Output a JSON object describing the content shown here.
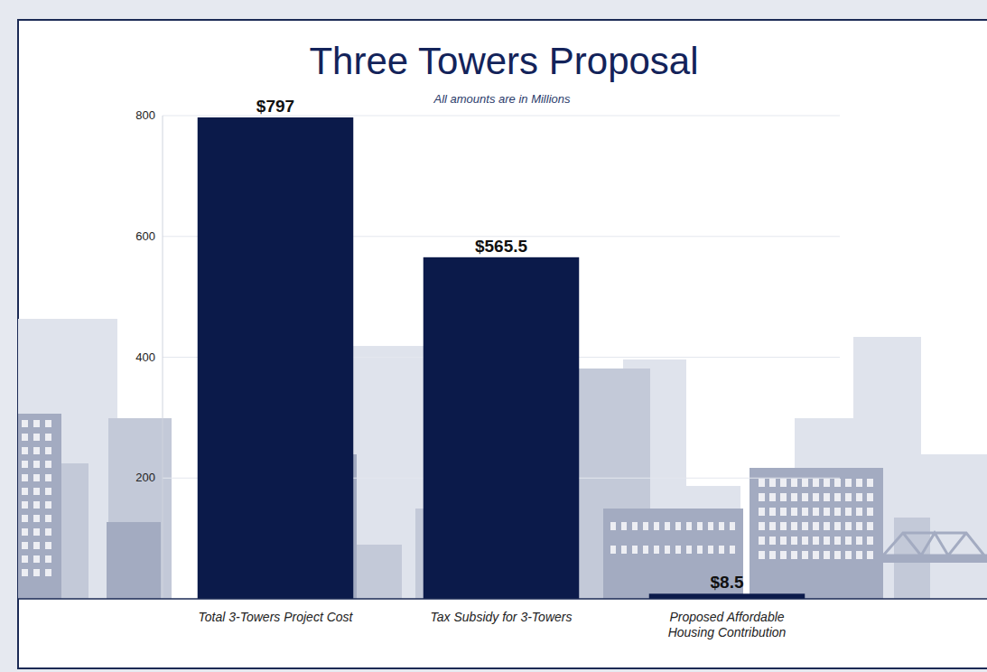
{
  "chart_data": {
    "type": "bar",
    "title": "Three Towers Proposal",
    "subtitle": "All amounts are in Millions",
    "categories": [
      "Total 3-Towers Project Cost",
      "Tax Subsidy for 3-Towers",
      "Proposed Affordable Housing Contribution"
    ],
    "values": [
      797,
      565.5,
      8.5
    ],
    "value_labels": [
      "$797",
      "$565.5",
      "$8.5"
    ],
    "data_labels": true,
    "color": "#0b1a4a",
    "ylim": [
      0,
      800
    ],
    "yticks": [
      200,
      400,
      600,
      800
    ],
    "grid": true
  }
}
